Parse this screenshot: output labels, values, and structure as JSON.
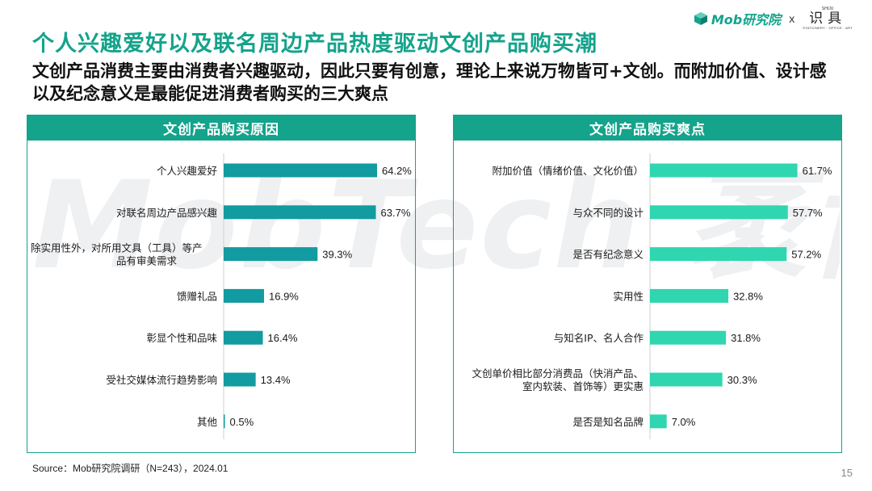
{
  "header": {
    "mob_logo_text": "Mob研究院",
    "separator": "x",
    "partner_top": "SHIJU",
    "partner_main": "识具",
    "partner_sub": "STATIONERY · OFFICE · ART"
  },
  "watermark_text": "MobTech 袤博",
  "page_title": "个人兴趣爱好以及联名周边产品热度驱动文创产品购买潮",
  "subtitle": "文创产品消费主要由消费者兴趣驱动，因此只要有创意，理论上来说万物皆可+文创。而附加价值、设计感以及纪念意义是最能促进消费者购买的三大爽点",
  "colors": {
    "accent": "#14a38b",
    "bar_left": "#129ba0",
    "bar_right": "#2fd6b0",
    "panel_header": "#14a38b"
  },
  "chart_data": [
    {
      "type": "bar",
      "orientation": "horizontal",
      "title": "文创产品购买原因",
      "categories": [
        "个人兴趣爱好",
        "对联名周边产品感兴趣",
        "除实用性外，对所用文具（工具）等产品有审美需求",
        "馈赠礼品",
        "彰显个性和品味",
        "受社交媒体流行趋势影响",
        "其他"
      ],
      "category_lines": [
        [
          "个人兴趣爱好"
        ],
        [
          "对联名周边产品感兴趣"
        ],
        [
          "除实用性外，对所用文具（工具）等产",
          "品有审美需求"
        ],
        [
          "馈赠礼品"
        ],
        [
          "彰显个性和品味"
        ],
        [
          "受社交媒体流行趋势影响"
        ],
        [
          "其他"
        ]
      ],
      "values": [
        64.2,
        63.7,
        39.3,
        16.9,
        16.4,
        13.4,
        0.5
      ],
      "value_labels": [
        "64.2%",
        "63.7%",
        "39.3%",
        "16.9%",
        "16.4%",
        "13.4%",
        "0.5%"
      ],
      "unit": "%",
      "xlim": [
        0,
        70
      ],
      "grid": false,
      "legend": "none"
    },
    {
      "type": "bar",
      "orientation": "horizontal",
      "title": "文创产品购买爽点",
      "categories": [
        "附加价值（情绪价值、文化价值）",
        "与众不同的设计",
        "是否有纪念意义",
        "实用性",
        "与知名IP、名人合作",
        "文创单价相比部分消费品（快消产品、室内软装、首饰等）更实惠",
        "是否是知名品牌"
      ],
      "category_lines": [
        [
          "附加价值（情绪价值、文化价值）"
        ],
        [
          "与众不同的设计"
        ],
        [
          "是否有纪念意义"
        ],
        [
          "实用性"
        ],
        [
          "与知名IP、名人合作"
        ],
        [
          "文创单价相比部分消费品（快消产品、",
          "室内软装、首饰等）更实惠"
        ],
        [
          "是否是知名品牌"
        ]
      ],
      "values": [
        61.7,
        57.7,
        57.2,
        32.8,
        31.8,
        30.3,
        7.0
      ],
      "value_labels": [
        "61.7%",
        "57.7%",
        "57.2%",
        "32.8%",
        "31.8%",
        "30.3%",
        "7.0%"
      ],
      "unit": "%",
      "xlim": [
        0,
        70
      ],
      "grid": false,
      "legend": "none"
    }
  ],
  "footer": {
    "source": "Source：Mob研究院调研（N=243），2024.01",
    "page_number": "15"
  }
}
